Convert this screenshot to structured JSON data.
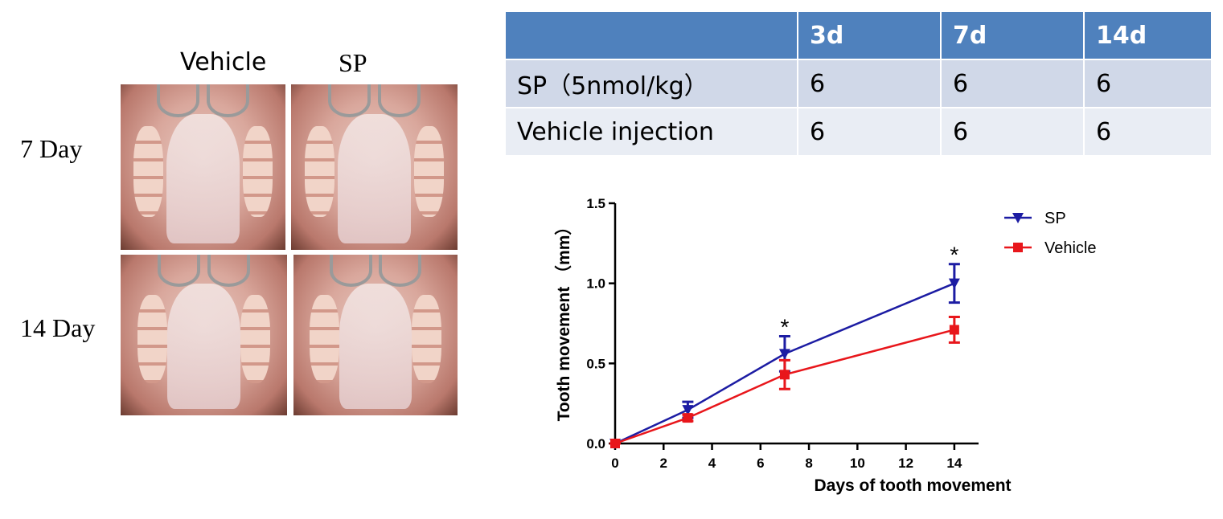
{
  "photos": {
    "columns": [
      "Vehicle",
      "SP"
    ],
    "rows": [
      "7 Day",
      "14 Day"
    ]
  },
  "table": {
    "header": [
      "3d",
      "7d",
      "14d"
    ],
    "rows": [
      {
        "label": "SP（5nmol/kg）",
        "values": [
          6,
          6,
          6
        ]
      },
      {
        "label": "Vehicle injection",
        "values": [
          6,
          6,
          6
        ]
      }
    ]
  },
  "chart_data": {
    "type": "line",
    "y_label": "Tooth movement （mm）",
    "x_label": "Days of tooth movement",
    "x": [
      0,
      3,
      7,
      14
    ],
    "series": [
      {
        "name": "SP",
        "color": "#1c1ca3",
        "marker": "triangle-down",
        "values": [
          0,
          0.21,
          0.56,
          1.0
        ],
        "errors": [
          0,
          0.05,
          0.11,
          0.12
        ]
      },
      {
        "name": "Vehicle",
        "color": "#e8161b",
        "marker": "square",
        "values": [
          0,
          0.16,
          0.43,
          0.71
        ],
        "errors": [
          0,
          0.02,
          0.09,
          0.08
        ]
      }
    ],
    "annotations": [
      {
        "text": "*",
        "x": 7
      },
      {
        "text": "*",
        "x": 14
      }
    ],
    "xlim": [
      0,
      15
    ],
    "xticks": [
      0,
      2,
      4,
      6,
      8,
      10,
      12,
      14
    ],
    "ylim": [
      0,
      1.5
    ],
    "yticks": [
      {
        "value": 0,
        "label": "0.0"
      },
      0.5,
      {
        "value": 1,
        "label": "1.0"
      },
      {
        "value": 1.5,
        "label": "1.5"
      }
    ],
    "legend": "upper-right"
  }
}
